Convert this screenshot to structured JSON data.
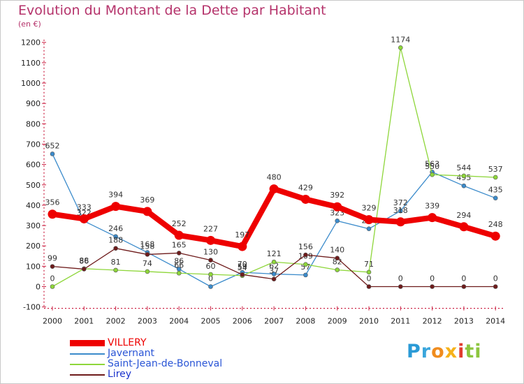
{
  "header": {
    "title": "Evolution du Montant de la Dette par Habitant",
    "unit": "(en €)"
  },
  "brand": "Proxiti",
  "chart_data": {
    "type": "line",
    "title": "Evolution du Montant de la Dette par Habitant",
    "subtitle": "(en €)",
    "x": [
      "2000",
      "2001",
      "2002",
      "2003",
      "2004",
      "2005",
      "2006",
      "2007",
      "2008",
      "2009",
      "2010",
      "2011",
      "2012",
      "2013",
      "2014"
    ],
    "ylim": [
      -100,
      1200
    ],
    "yticks": [
      "-100",
      "0",
      "100",
      "200",
      "300",
      "400",
      "500",
      "600",
      "700",
      "800",
      "900",
      "1000",
      "1100",
      "1200"
    ],
    "grid": false,
    "legend": "bottom-left",
    "series": [
      {
        "name": "VILLERY",
        "color": "#ee0000",
        "values": [
          356,
          333,
          394,
          369,
          252,
          227,
          197,
          480,
          429,
          392,
          329,
          318,
          339,
          294,
          248
        ],
        "labels": [
          "356",
          "333",
          "394",
          "369",
          "252",
          "227",
          "197",
          "480",
          "429",
          "392",
          "329",
          "318",
          "339",
          "294",
          "248"
        ]
      },
      {
        "name": "Javernant",
        "color": "#3b8bcb",
        "values": [
          652,
          322,
          246,
          168,
          86,
          0,
          70,
          62,
          57,
          323,
          284,
          372,
          563,
          495,
          435
        ],
        "labels": [
          "652",
          "322",
          "246",
          "168",
          "86",
          "0",
          "70",
          "62",
          "57",
          "323",
          "284",
          "372",
          "563",
          "495",
          "435"
        ]
      },
      {
        "name": "Saint-Jean-de-Bonneval",
        "color": "#8ed63a",
        "values": [
          0,
          88,
          81,
          74,
          66,
          60,
          54,
          121,
          109,
          82,
          71,
          1174,
          550,
          544,
          537
        ],
        "labels": [
          "0",
          "88",
          "81",
          "74",
          "66",
          "60",
          "54",
          "121",
          "109",
          "82",
          "71",
          "1174",
          "550",
          "544",
          "537"
        ]
      },
      {
        "name": "Lirey",
        "color": "#6e1b1b",
        "values": [
          99,
          86,
          188,
          158,
          165,
          130,
          59,
          37,
          156,
          140,
          0,
          0,
          0,
          0,
          0
        ],
        "labels": [
          "99",
          "86",
          "188",
          "158",
          "165",
          "130",
          "59",
          "37",
          "156",
          "140",
          "0",
          "0",
          "0",
          "0",
          "0"
        ]
      }
    ]
  }
}
